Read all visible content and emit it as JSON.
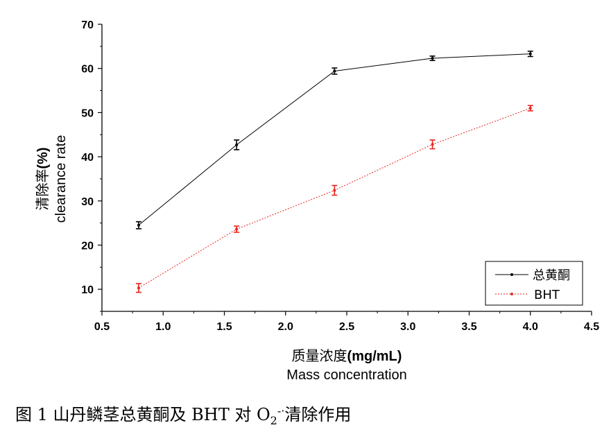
{
  "chart_data": {
    "type": "line",
    "x_axis": {
      "label_line1_cn": "质量浓度",
      "label_line1_unit": "(mg/mL)",
      "label_line2": "Mass concentration",
      "range": [
        0.5,
        4.5
      ],
      "ticks": [
        0.5,
        1.0,
        1.5,
        2.0,
        2.5,
        3.0,
        3.5,
        4.0,
        4.5
      ],
      "tick_labels": [
        "0.5",
        "1.0",
        "1.5",
        "2.0",
        "2.5",
        "3.0",
        "3.5",
        "4.0",
        "4.5"
      ]
    },
    "y_axis": {
      "label_line1_cn": "清除率",
      "label_line1_unit": "(%)",
      "label_line2": "clearance rate",
      "range": [
        5,
        70
      ],
      "ticks": [
        10,
        20,
        30,
        40,
        50,
        60,
        70
      ],
      "tick_labels": [
        "10",
        "20",
        "30",
        "40",
        "50",
        "60",
        "70"
      ]
    },
    "grid": false,
    "legend_position": "bottom-right",
    "series": [
      {
        "name": "总黄酮",
        "color": "#000000",
        "line_style": "solid",
        "x": [
          0.8,
          1.6,
          2.4,
          3.2,
          4.0
        ],
        "y": [
          24.5,
          42.7,
          59.4,
          62.3,
          63.3
        ],
        "error": [
          0.8,
          1.1,
          0.7,
          0.5,
          0.6
        ]
      },
      {
        "name": "BHT",
        "color": "#e8231e",
        "line_style": "dotted",
        "x": [
          0.8,
          1.6,
          2.4,
          3.2,
          4.0
        ],
        "y": [
          10.3,
          23.6,
          32.4,
          42.8,
          51.0
        ],
        "error": [
          1.0,
          0.7,
          1.1,
          1.0,
          0.6
        ]
      }
    ]
  },
  "caption": {
    "prefix": "图 1 山丹鳞茎总黄酮及 BHT 对 O",
    "subscript": "2",
    "superscript": "-·",
    "suffix": "清除作用"
  }
}
